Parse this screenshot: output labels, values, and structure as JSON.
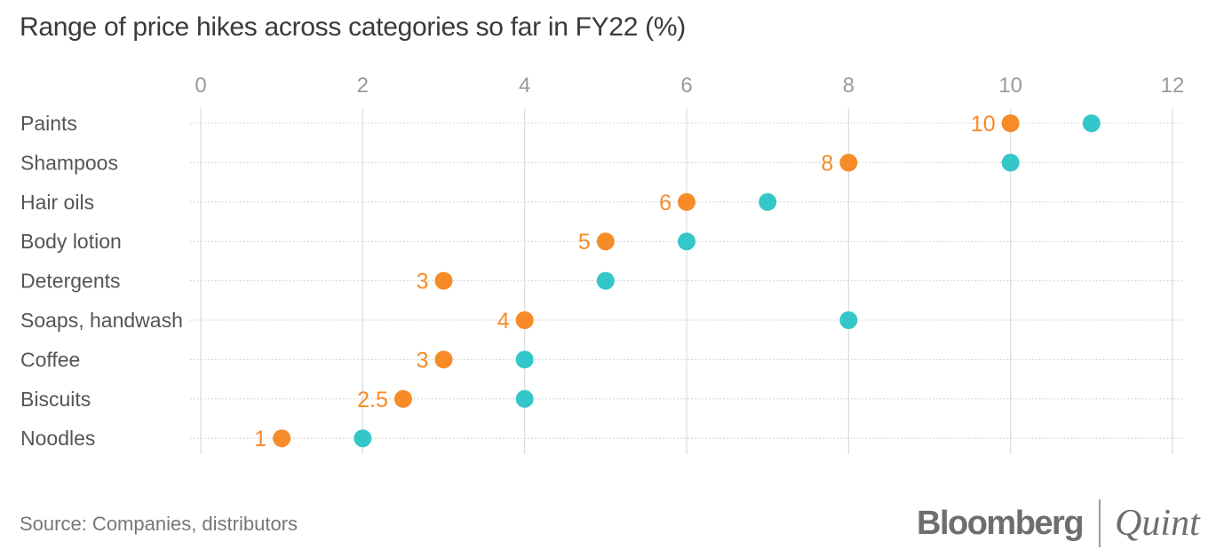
{
  "chart_data": {
    "type": "dumbbell",
    "title": "Range of price hikes across categories so far in FY22 (%)",
    "xlim": [
      0,
      12
    ],
    "xticks": [
      0,
      2,
      4,
      6,
      8,
      10,
      12
    ],
    "grid": true,
    "categories": [
      "Paints",
      "Shampoos",
      "Hair oils",
      "Body lotion",
      "Detergents",
      "Soaps, handwash",
      "Coffee",
      "Biscuits",
      "Noodles"
    ],
    "low": [
      10,
      8,
      6,
      5,
      3,
      4,
      3,
      2.5,
      1
    ],
    "low_labels": [
      "10",
      "8",
      "6",
      "5",
      "3",
      "4",
      "3",
      "2.5",
      "1"
    ],
    "high": [
      11,
      10,
      7,
      6,
      5,
      8,
      4,
      4,
      2
    ],
    "colors": {
      "low": "#f68b28",
      "high": "#33c7c9"
    }
  },
  "source": "Source: Companies, distributors",
  "brand": {
    "name_a": "Bloomberg",
    "name_b": "Quint"
  }
}
